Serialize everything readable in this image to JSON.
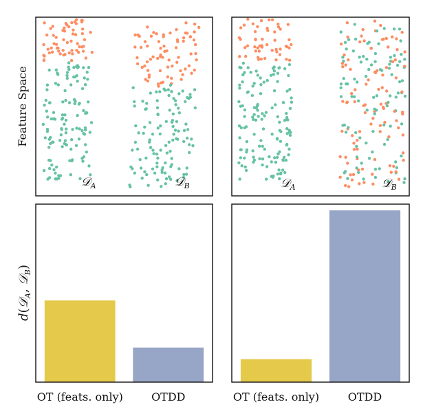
{
  "figure": {
    "ylabel_top": "Feature Space",
    "ylabel_bottom_parts": {
      "d": "d",
      "open": "(",
      "da": "𝒟",
      "sub_a": "A",
      "comma": ", ",
      "db": "𝒟",
      "sub_b": "B",
      "close": ")"
    },
    "dataset_label_a": {
      "main": "𝒟",
      "sub": "A"
    },
    "dataset_label_b": {
      "main": "𝒟",
      "sub": "B"
    }
  },
  "colors": {
    "class_teal": "#66c2a5",
    "class_orange": "#fc8d62",
    "bar_ot": "#e5c94a",
    "bar_otdd": "#97a6c6"
  },
  "chart_data": [
    {
      "type": "scatter",
      "panel": "top-left",
      "xlim": [
        0,
        10
      ],
      "ylim": [
        0,
        10
      ],
      "series": [
        {
          "cluster": "DA",
          "x_range": [
            0.4,
            3.2
          ],
          "y_range": [
            0.9,
            9.9
          ],
          "teal_below_y": 7.4,
          "n": 185
        },
        {
          "cluster": "DB",
          "x_range": [
            5.3,
            9.4
          ],
          "y_range": [
            0.5,
            9.7
          ],
          "teal_below_y": 6.2,
          "n": 190
        }
      ],
      "labels": [
        "𝒟A",
        "𝒟B"
      ]
    },
    {
      "type": "scatter",
      "panel": "top-right",
      "xlim": [
        0,
        10
      ],
      "ylim": [
        0,
        10
      ],
      "series": [
        {
          "cluster": "DA",
          "x_range": [
            0.4,
            3.4
          ],
          "y_range": [
            0.9,
            9.9
          ],
          "teal_below_y": 7.4,
          "n": 190
        },
        {
          "cluster": "DB",
          "x_range": [
            6.1,
            9.8
          ],
          "y_range": [
            0.5,
            9.8
          ],
          "mixed": true,
          "n": 200
        }
      ],
      "labels": [
        "𝒟A",
        "𝒟B"
      ]
    },
    {
      "type": "bar",
      "panel": "bottom-left",
      "categories": [
        "OT (feats. only)",
        "OTDD"
      ],
      "values": [
        0.39,
        0.165
      ],
      "ylim": [
        0,
        0.85
      ],
      "ylabel": "d(𝒟A, 𝒟B)"
    },
    {
      "type": "bar",
      "panel": "bottom-right",
      "categories": [
        "OT (feats. only)",
        "OTDD"
      ],
      "values": [
        0.11,
        0.82
      ],
      "ylim": [
        0,
        0.85
      ]
    }
  ]
}
